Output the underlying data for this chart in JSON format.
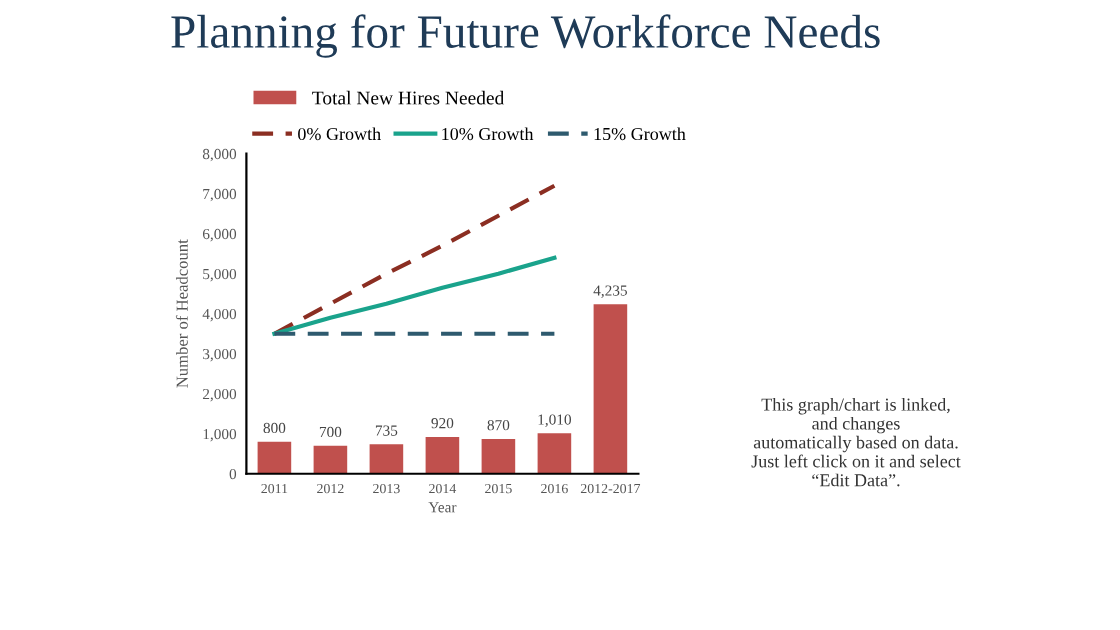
{
  "chart_data": {
    "type": "bar",
    "title": "Planning for Future Workforce Needs",
    "ylabel": "Number of Headcount",
    "xlabel": "Year",
    "categories": [
      "2011",
      "2012",
      "2013",
      "2014",
      "2015",
      "2016",
      "2012-2017"
    ],
    "series": [
      {
        "name": "Total New Hires Needed",
        "color": "#c0504d",
        "values": [
          800,
          700,
          735,
          920,
          870,
          1010,
          4235
        ],
        "value_labels": [
          "800",
          "700",
          "735",
          "920",
          "870",
          "1,010",
          "4,235"
        ]
      },
      {
        "name": "0% Growth",
        "type": "line",
        "line_style": "dashed",
        "color": "#8b2e22",
        "values": [
          3500,
          4250,
          5000,
          5700,
          6450,
          7200,
          null
        ]
      },
      {
        "name": "10% Growth",
        "type": "line",
        "line_style": "solid",
        "color": "#1aa38c",
        "values": [
          3500,
          3900,
          4250,
          4650,
          5000,
          5400,
          null
        ]
      },
      {
        "name": "15% Growth",
        "type": "line",
        "line_style": "dashed",
        "color": "#2e5a6e",
        "values": [
          3500,
          3500,
          3500,
          3500,
          3500,
          3500,
          null
        ]
      }
    ],
    "ylim": [
      0,
      8000
    ],
    "yticks": [
      {
        "value": 0,
        "label": "0"
      },
      {
        "value": 1000,
        "label": "1,000"
      },
      {
        "value": 2000,
        "label": "2,000"
      },
      {
        "value": 3000,
        "label": "3,000"
      },
      {
        "value": 4000,
        "label": "4,000"
      },
      {
        "value": 5000,
        "label": "5,000"
      },
      {
        "value": 6000,
        "label": "6,000"
      },
      {
        "value": 7000,
        "label": "7,000"
      },
      {
        "value": 8000,
        "label": "8,000"
      }
    ],
    "grid": false,
    "legend": "top",
    "annotations": [
      "This graph/chart is linked,\nand changes\nautomatically based on data.\nJust left click on it and select\n“Edit Data”."
    ]
  }
}
